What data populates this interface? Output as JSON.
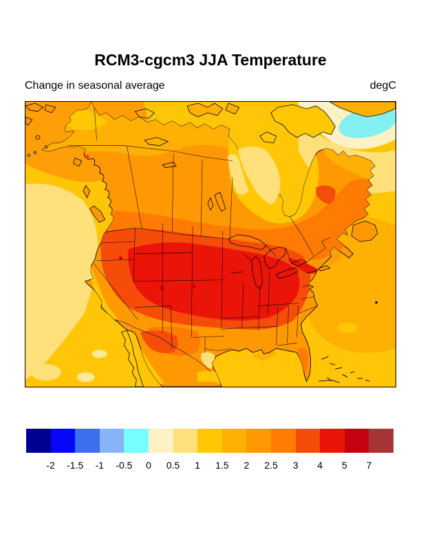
{
  "header": {
    "title": "RCM3-cgcm3 JJA Temperature",
    "subtitle": "Change in seasonal average",
    "units": "degC"
  },
  "colorbar": {
    "orientation": "horizontal",
    "labels": [
      "-2",
      "-1.5",
      "-1",
      "-0.5",
      "0",
      "0.5",
      "1",
      "1.5",
      "2",
      "2.5",
      "3",
      "4",
      "5",
      "7"
    ],
    "colors": [
      "#000093",
      "#0606F9",
      "#3C70EF",
      "#88B3F6",
      "#75FFFF",
      "#FDF2C6",
      "#FFE07B",
      "#FFC803",
      "#FFB005",
      "#FF9903",
      "#FF7B03",
      "#F64C0A",
      "#EA1408",
      "#C50310",
      "#A63434"
    ]
  },
  "chart_data": {
    "type": "heatmap",
    "subtype": "filled-contour-geographic-map",
    "title": "RCM3-cgcm3 JJA Temperature",
    "subtitle": "Change in seasonal average",
    "units": "degC",
    "region": "North America",
    "legend_position": "bottom",
    "bin_edges": [
      -2,
      -1.5,
      -1,
      -0.5,
      0,
      0.5,
      1,
      1.5,
      2,
      2.5,
      3,
      4,
      5,
      7
    ],
    "bin_colors": [
      "#000093",
      "#0606F9",
      "#3C70EF",
      "#88B3F6",
      "#75FFFF",
      "#FDF2C6",
      "#FFE07B",
      "#FFC803",
      "#FFB005",
      "#FF9903",
      "#FF7B03",
      "#F64C0A",
      "#EA1408",
      "#C50310",
      "#A63434"
    ],
    "region_estimates_degC": [
      {
        "region": "Davis Strait / SW Greenland waters",
        "value": -0.25
      },
      {
        "region": "Labrador Sea band",
        "value": 0.75
      },
      {
        "region": "Pacific off Oregon / N California",
        "value": 0.75
      },
      {
        "region": "Pacific off California / Baja",
        "value": 1.25
      },
      {
        "region": "Bering Sea / Gulf of Alaska",
        "value": 2.25
      },
      {
        "region": "Alaska / Yukon interior",
        "value": 2.25
      },
      {
        "region": "Arctic coast of Canada",
        "value": 2.25
      },
      {
        "region": "Hudson Bay",
        "value": 1.25
      },
      {
        "region": "Central Canada (prairies, Quebec interior)",
        "value": 2.75
      },
      {
        "region": "US interior west / Great Plains / Midwest core",
        "value": 3.5
      },
      {
        "region": "Hot spots Utah / Kansas / Colorado",
        "value": 6.0
      },
      {
        "region": "US east and west coastal strips",
        "value": 2.5
      },
      {
        "region": "Atlantic offshore of east coast",
        "value": 2.25
      },
      {
        "region": "Gulf of Mexico / Bahamas waters",
        "value": 1.25
      },
      {
        "region": "Northern Mexico",
        "value": 3.0
      },
      {
        "region": "South Texas coast",
        "value": 0.75
      }
    ]
  }
}
